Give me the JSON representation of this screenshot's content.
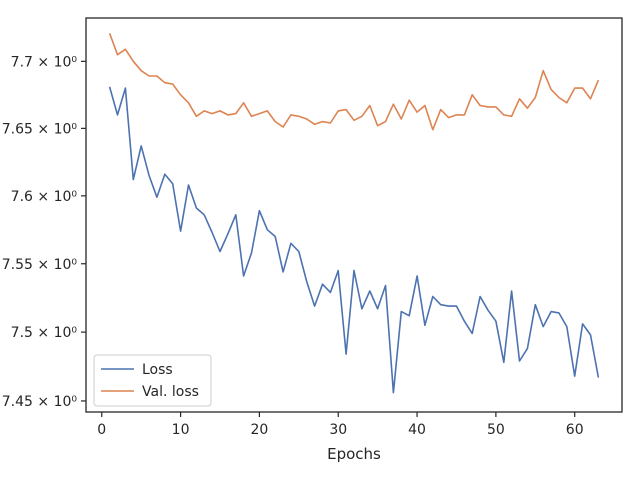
{
  "chart_data": {
    "type": "line",
    "xlabel": "Epochs",
    "ylabel": "",
    "xlim": [
      -2,
      66
    ],
    "ylim": [
      7.442,
      7.7325
    ],
    "y_scale": "log",
    "grid": false,
    "legend_position": "lower-left",
    "x_ticks": [
      0,
      10,
      20,
      30,
      40,
      50,
      60
    ],
    "x_tick_labels": [
      "0",
      "10",
      "20",
      "30",
      "40",
      "50",
      "60"
    ],
    "y_ticks": [
      7.45,
      7.5,
      7.55,
      7.6,
      7.65,
      7.7
    ],
    "y_tick_labels": [
      "7.45 × 10⁰",
      "7.5 × 10⁰",
      "7.55 × 10⁰",
      "7.6 × 10⁰",
      "7.65 × 10⁰",
      "7.7 × 10⁰"
    ],
    "x": [
      1,
      2,
      3,
      4,
      5,
      6,
      7,
      8,
      9,
      10,
      11,
      12,
      13,
      14,
      15,
      16,
      17,
      18,
      19,
      20,
      21,
      22,
      23,
      24,
      25,
      26,
      27,
      28,
      29,
      30,
      31,
      32,
      33,
      34,
      35,
      36,
      37,
      38,
      39,
      40,
      41,
      42,
      43,
      44,
      45,
      46,
      47,
      48,
      49,
      50,
      51,
      52,
      53,
      54,
      55,
      56,
      57,
      58,
      59,
      60,
      61,
      62,
      63
    ],
    "series": [
      {
        "name": "Loss",
        "color": "#4c72b0",
        "values": [
          7.681,
          7.66,
          7.68,
          7.612,
          7.637,
          7.615,
          7.599,
          7.616,
          7.609,
          7.574,
          7.608,
          7.591,
          7.586,
          7.573,
          7.559,
          7.572,
          7.586,
          7.541,
          7.558,
          7.589,
          7.575,
          7.57,
          7.544,
          7.565,
          7.559,
          7.537,
          7.519,
          7.535,
          7.529,
          7.545,
          7.484,
          7.545,
          7.517,
          7.53,
          7.517,
          7.534,
          7.456,
          7.515,
          7.512,
          7.541,
          7.505,
          7.526,
          7.52,
          7.519,
          7.519,
          7.508,
          7.499,
          7.526,
          7.516,
          7.508,
          7.478,
          7.53,
          7.479,
          7.488,
          7.52,
          7.504,
          7.515,
          7.514,
          7.504,
          7.468,
          7.506,
          7.498,
          7.467
        ]
      },
      {
        "name": "Val. loss",
        "color": "#dd8452",
        "values": [
          7.721,
          7.705,
          7.709,
          7.7,
          7.693,
          7.689,
          7.689,
          7.684,
          7.683,
          7.675,
          7.669,
          7.659,
          7.663,
          7.661,
          7.663,
          7.66,
          7.661,
          7.669,
          7.659,
          7.661,
          7.663,
          7.655,
          7.651,
          7.66,
          7.659,
          7.657,
          7.653,
          7.655,
          7.654,
          7.663,
          7.664,
          7.656,
          7.659,
          7.667,
          7.652,
          7.655,
          7.668,
          7.657,
          7.671,
          7.662,
          7.667,
          7.649,
          7.664,
          7.658,
          7.66,
          7.66,
          7.675,
          7.667,
          7.666,
          7.666,
          7.66,
          7.659,
          7.672,
          7.665,
          7.673,
          7.693,
          7.679,
          7.673,
          7.669,
          7.68,
          7.68,
          7.672,
          7.686
        ]
      }
    ]
  }
}
